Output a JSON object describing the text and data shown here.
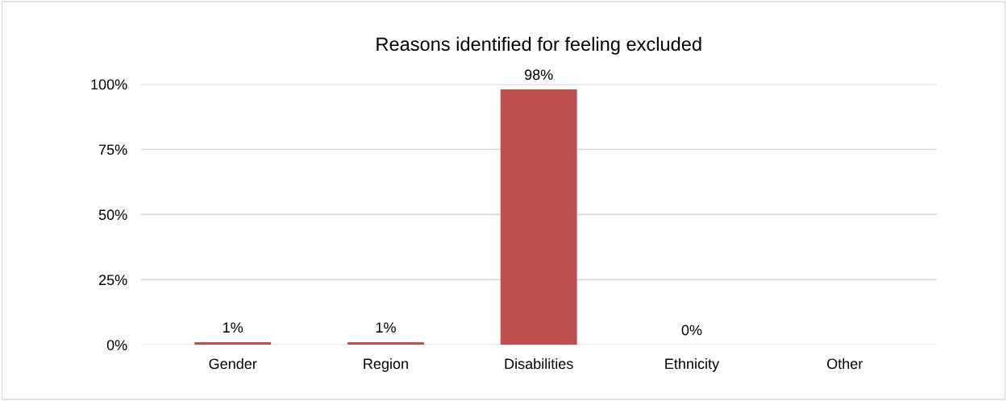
{
  "chart_data": {
    "type": "bar",
    "title": "Reasons identified for feeling excluded",
    "categories": [
      "Gender",
      "Region",
      "Disabilities",
      "Ethnicity",
      "Other"
    ],
    "values": [
      1,
      1,
      98,
      0,
      0
    ],
    "value_labels": [
      "1%",
      "1%",
      "98%",
      "0%",
      null
    ],
    "color": "#c0504d",
    "ylim": [
      0,
      100
    ],
    "yticks": [
      {
        "value": 0,
        "label": "0%"
      },
      {
        "value": 25,
        "label": "25%"
      },
      {
        "value": 50,
        "label": "50%"
      },
      {
        "value": 75,
        "label": "75%"
      },
      {
        "value": 100,
        "label": "100%"
      }
    ],
    "grid": "y",
    "legend": false
  }
}
